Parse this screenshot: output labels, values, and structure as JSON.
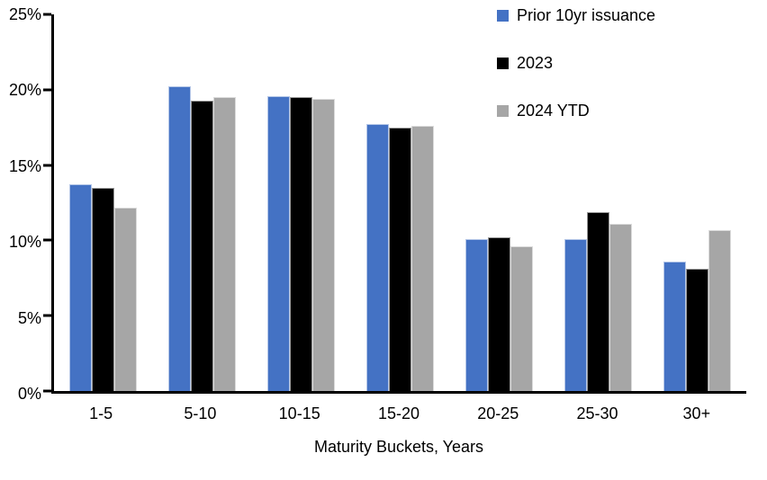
{
  "chart_data": {
    "type": "bar",
    "title": "",
    "categories": [
      "1-5",
      "5-10",
      "10-15",
      "15-20",
      "20-25",
      "25-30",
      "30+"
    ],
    "series": [
      {
        "name": "Prior 10yr issuance",
        "color": "#4472C4",
        "values": [
          13.7,
          20.2,
          19.6,
          17.7,
          10.1,
          10.1,
          8.6
        ]
      },
      {
        "name": "2023",
        "color": "#000000",
        "values": [
          13.5,
          19.3,
          19.5,
          17.5,
          10.2,
          11.9,
          8.1
        ]
      },
      {
        "name": "2024 YTD",
        "color": "#A6A6A6",
        "values": [
          12.2,
          19.5,
          19.4,
          17.6,
          9.6,
          11.1,
          10.7
        ]
      }
    ],
    "xlabel": "Maturity Buckets, Years",
    "ylabel": "",
    "ylim": [
      0,
      25
    ],
    "ytick_step": 5,
    "ytick_labels": [
      "0%",
      "5%",
      "10%",
      "15%",
      "20%",
      "25%"
    ],
    "axis_color": "#000000",
    "grid": false,
    "legend_position": "top-right"
  }
}
